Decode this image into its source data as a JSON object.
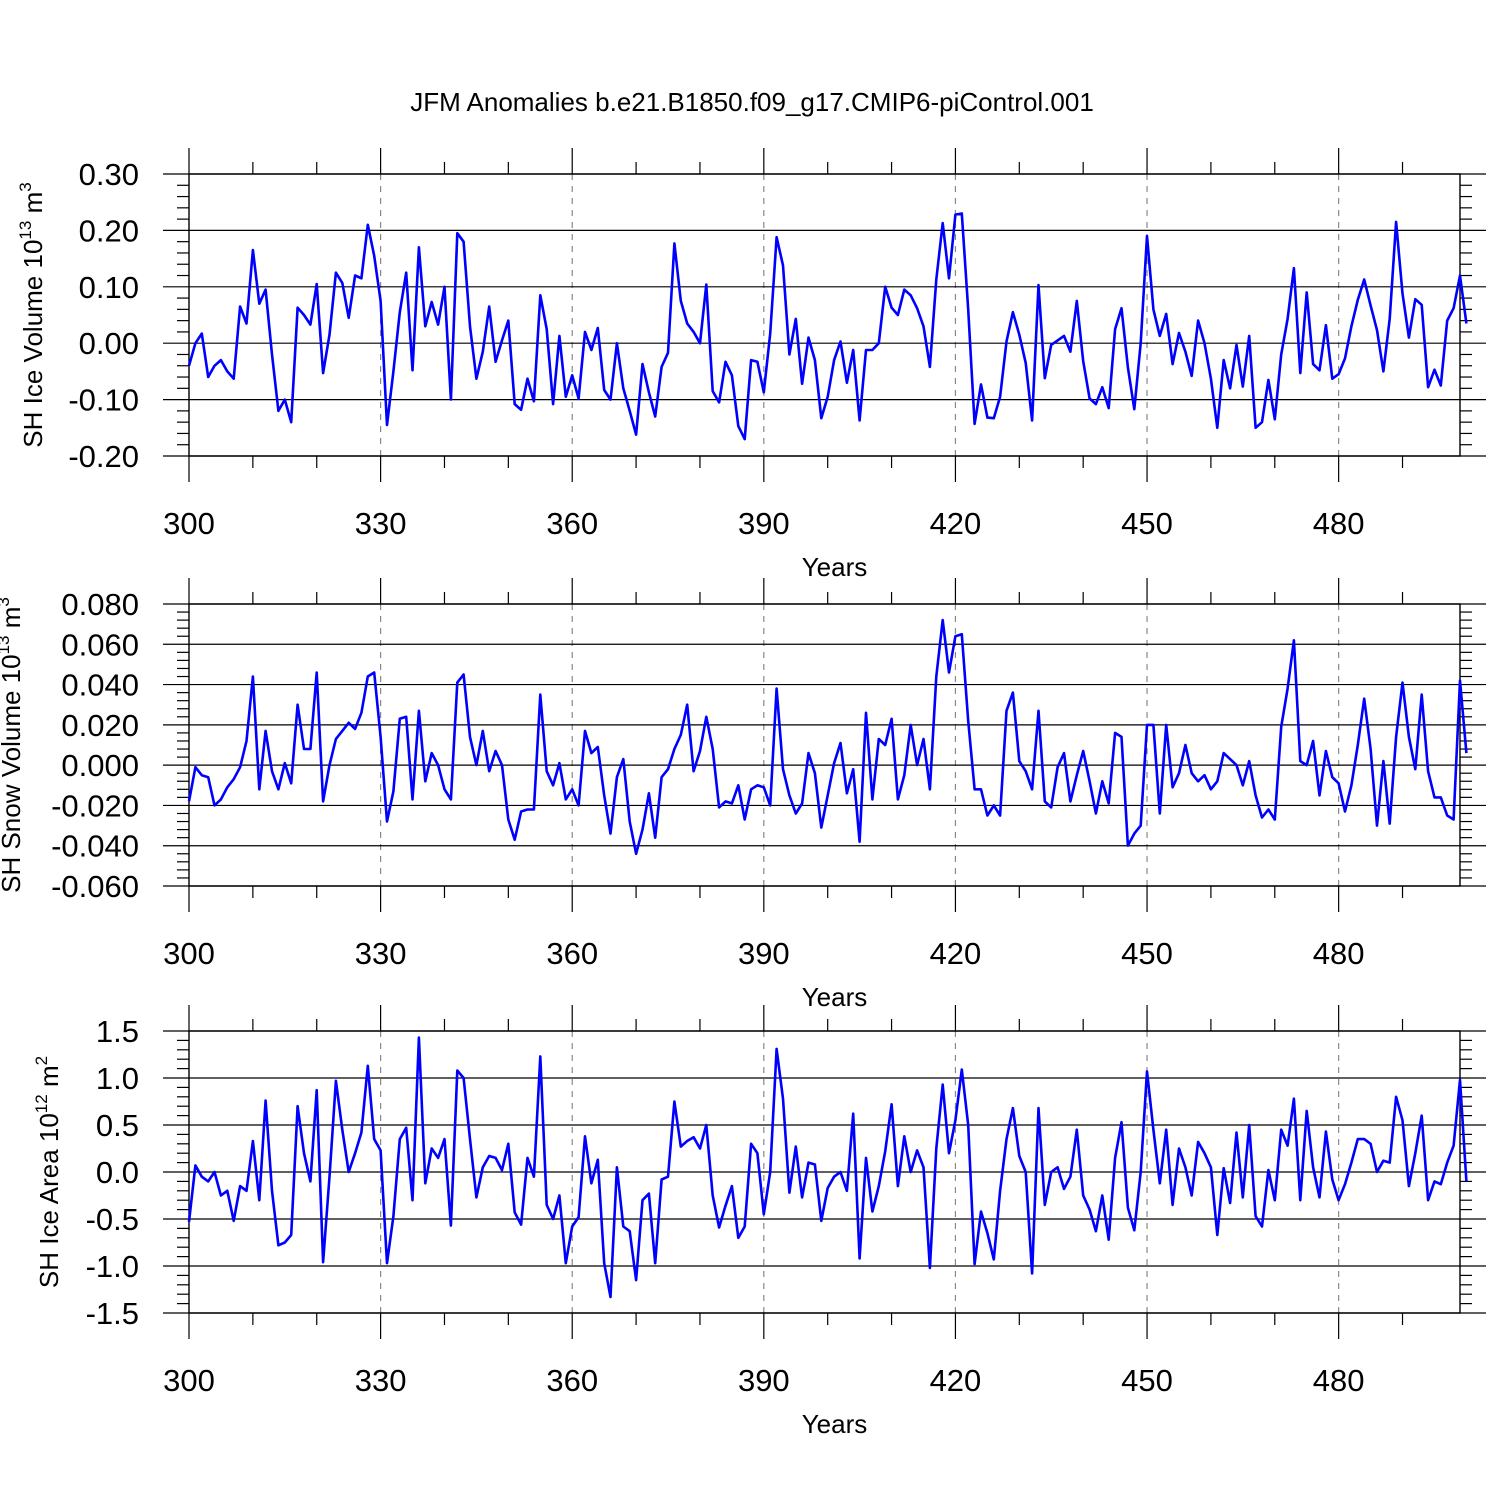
{
  "title": "JFM Anomalies b.e21.B1850.f09_g17.CMIP6-piControl.001",
  "colors": {
    "line": "#0000ff",
    "grid": "#888888"
  },
  "chart_data": [
    {
      "type": "line",
      "xlabel": "Years",
      "ylabel": "SH Ice Volume 10¹³ m³",
      "xlim": [
        300,
        499
      ],
      "ylim": [
        -0.2,
        0.3
      ],
      "xticks": [
        300,
        330,
        360,
        390,
        420,
        450,
        480
      ],
      "xtick_labels": [
        "300",
        "330",
        "360",
        "390",
        "420",
        "450",
        "480"
      ],
      "yticks": [
        -0.2,
        -0.1,
        0.0,
        0.1,
        0.2,
        0.3
      ],
      "ytick_labels": [
        "-0.20",
        "-0.10",
        "0.00",
        "0.10",
        "0.20",
        "0.30"
      ],
      "grid": "vertical dashed at major x ticks",
      "series": [
        {
          "x_start": 300,
          "values": [
            -0.04,
            0.0,
            0.017,
            -0.06,
            -0.04,
            -0.03,
            -0.05,
            -0.063,
            0.065,
            0.035,
            0.165,
            0.07,
            0.095,
            -0.02,
            -0.12,
            -0.1,
            -0.14,
            0.063,
            0.05,
            0.033,
            0.105,
            -0.053,
            0.015,
            0.125,
            0.107,
            0.045,
            0.12,
            0.115,
            0.21,
            0.155,
            0.075,
            -0.145,
            -0.05,
            0.055,
            0.125,
            -0.048,
            0.17,
            0.03,
            0.073,
            0.033,
            0.1,
            -0.1,
            0.195,
            0.18,
            0.03,
            -0.063,
            -0.015,
            0.065,
            -0.033,
            0.005,
            0.04,
            -0.108,
            -0.118,
            -0.063,
            -0.103,
            0.085,
            0.025,
            -0.108,
            0.013,
            -0.095,
            -0.057,
            -0.098,
            0.02,
            -0.012,
            0.027,
            -0.083,
            -0.1,
            0.0,
            -0.08,
            -0.12,
            -0.162,
            -0.037,
            -0.087,
            -0.13,
            -0.042,
            -0.017,
            0.177,
            0.075,
            0.035,
            0.02,
            0.0,
            0.104,
            -0.085,
            -0.105,
            -0.033,
            -0.057,
            -0.147,
            -0.17,
            -0.03,
            -0.033,
            -0.087,
            0.017,
            0.188,
            0.138,
            -0.02,
            0.043,
            -0.072,
            0.01,
            -0.03,
            -0.133,
            -0.095,
            -0.03,
            0.003,
            -0.07,
            -0.012,
            -0.137,
            -0.012,
            -0.012,
            0.0,
            0.1,
            0.063,
            0.05,
            0.095,
            0.085,
            0.062,
            0.03,
            -0.042,
            0.113,
            0.213,
            0.115,
            0.228,
            0.23,
            0.06,
            -0.143,
            -0.073,
            -0.132,
            -0.133,
            -0.095,
            0.003,
            0.055,
            0.015,
            -0.035,
            -0.137,
            0.103,
            -0.062,
            -0.003,
            0.005,
            0.013,
            -0.015,
            0.075,
            -0.032,
            -0.098,
            -0.108,
            -0.078,
            -0.115,
            0.025,
            0.062,
            -0.043,
            -0.117,
            0.0,
            0.19,
            0.06,
            0.013,
            0.052,
            -0.037,
            0.018,
            -0.015,
            -0.058,
            0.04,
            0.0,
            -0.063,
            -0.15,
            -0.03,
            -0.08,
            -0.003,
            -0.077,
            0.013,
            -0.15,
            -0.14,
            -0.065,
            -0.135,
            -0.02,
            0.043,
            0.133,
            -0.053,
            0.09,
            -0.037,
            -0.048,
            0.032,
            -0.063,
            -0.055,
            -0.027,
            0.03,
            0.077,
            0.113,
            0.067,
            0.023,
            -0.05,
            0.043,
            0.215,
            0.088,
            0.01,
            0.078,
            0.068,
            -0.078,
            -0.047,
            -0.075,
            0.04,
            0.062,
            0.12,
            0.035
          ]
        }
      ]
    },
    {
      "type": "line",
      "xlabel": "Years",
      "ylabel": "SH Snow Volume 10¹³ m³",
      "xlim": [
        300,
        499
      ],
      "ylim": [
        -0.06,
        0.08
      ],
      "xticks": [
        300,
        330,
        360,
        390,
        420,
        450,
        480
      ],
      "xtick_labels": [
        "300",
        "330",
        "360",
        "390",
        "420",
        "450",
        "480"
      ],
      "yticks": [
        -0.06,
        -0.04,
        -0.02,
        0.0,
        0.02,
        0.04,
        0.06,
        0.08
      ],
      "ytick_labels": [
        "-0.060",
        "-0.040",
        "-0.020",
        "0.000",
        "0.020",
        "0.040",
        "0.060",
        "0.080"
      ],
      "grid": "vertical dashed at major x ticks",
      "series": [
        {
          "x_start": 300,
          "values": [
            -0.018,
            -0.001,
            -0.005,
            -0.006,
            -0.02,
            -0.017,
            -0.011,
            -0.007,
            -0.001,
            0.012,
            0.044,
            -0.012,
            0.017,
            -0.003,
            -0.012,
            0.001,
            -0.009,
            0.03,
            0.008,
            0.008,
            0.046,
            -0.018,
            0.0,
            0.013,
            0.017,
            0.021,
            0.018,
            0.026,
            0.044,
            0.046,
            0.014,
            -0.028,
            -0.013,
            0.023,
            0.024,
            -0.017,
            0.027,
            -0.008,
            0.006,
            0.0,
            -0.012,
            -0.017,
            0.041,
            0.045,
            0.014,
            0.0,
            0.017,
            -0.003,
            0.007,
            0.0,
            -0.027,
            -0.037,
            -0.023,
            -0.022,
            -0.022,
            0.035,
            -0.003,
            -0.01,
            0.001,
            -0.017,
            -0.012,
            -0.02,
            0.017,
            0.006,
            0.009,
            -0.015,
            -0.034,
            -0.006,
            0.003,
            -0.028,
            -0.044,
            -0.032,
            -0.014,
            -0.036,
            -0.006,
            -0.002,
            0.008,
            0.015,
            0.03,
            -0.003,
            0.007,
            0.024,
            0.008,
            -0.021,
            -0.018,
            -0.019,
            -0.01,
            -0.027,
            -0.012,
            -0.01,
            -0.011,
            -0.02,
            0.038,
            -0.002,
            -0.015,
            -0.024,
            -0.019,
            0.006,
            -0.004,
            -0.031,
            -0.015,
            0.001,
            0.011,
            -0.014,
            -0.002,
            -0.038,
            0.026,
            -0.017,
            0.013,
            0.01,
            0.023,
            -0.017,
            -0.005,
            0.02,
            0.0,
            0.013,
            -0.012,
            0.044,
            0.072,
            0.046,
            0.064,
            0.065,
            0.022,
            -0.012,
            -0.012,
            -0.025,
            -0.02,
            -0.025,
            0.027,
            0.036,
            0.002,
            -0.003,
            -0.012,
            0.027,
            -0.018,
            -0.021,
            -0.001,
            0.006,
            -0.018,
            -0.005,
            0.007,
            -0.008,
            -0.024,
            -0.008,
            -0.019,
            0.016,
            0.014,
            -0.04,
            -0.034,
            -0.03,
            0.02,
            0.02,
            -0.024,
            0.02,
            -0.011,
            -0.004,
            0.01,
            -0.004,
            -0.008,
            -0.005,
            -0.012,
            -0.008,
            0.006,
            0.003,
            0.0,
            -0.01,
            0.002,
            -0.015,
            -0.026,
            -0.022,
            -0.027,
            0.019,
            0.038,
            0.062,
            0.002,
            0.0,
            0.012,
            -0.015,
            0.007,
            -0.006,
            -0.009,
            -0.023,
            -0.01,
            0.01,
            0.033,
            0.008,
            -0.03,
            0.002,
            -0.029,
            0.014,
            0.041,
            0.014,
            -0.002,
            0.035,
            -0.003,
            -0.016,
            -0.016,
            -0.025,
            -0.027,
            0.042,
            0.006
          ]
        }
      ]
    },
    {
      "type": "line",
      "xlabel": "Years",
      "ylabel": "SH Ice Area 10¹² m²",
      "xlim": [
        300,
        499
      ],
      "ylim": [
        -1.5,
        1.5
      ],
      "xticks": [
        300,
        330,
        360,
        390,
        420,
        450,
        480
      ],
      "xtick_labels": [
        "300",
        "330",
        "360",
        "390",
        "420",
        "450",
        "480"
      ],
      "yticks": [
        -1.5,
        -1.0,
        -0.5,
        0.0,
        0.5,
        1.0,
        1.5
      ],
      "ytick_labels": [
        "-1.5",
        "-1.0",
        "-0.5",
        "0.0",
        "0.5",
        "1.0",
        "1.5"
      ],
      "grid": "vertical dashed at major x ticks",
      "series": [
        {
          "x_start": 300,
          "values": [
            -0.53,
            0.07,
            -0.05,
            -0.1,
            0.0,
            -0.25,
            -0.2,
            -0.52,
            -0.15,
            -0.2,
            0.33,
            -0.3,
            0.76,
            -0.2,
            -0.78,
            -0.75,
            -0.67,
            0.7,
            0.2,
            -0.1,
            0.87,
            -0.96,
            -0.05,
            0.97,
            0.45,
            0.0,
            0.2,
            0.42,
            1.13,
            0.35,
            0.23,
            -0.97,
            -0.47,
            0.35,
            0.47,
            -0.3,
            1.43,
            -0.12,
            0.25,
            0.15,
            0.35,
            -0.57,
            1.08,
            1.0,
            0.35,
            -0.27,
            0.05,
            0.17,
            0.15,
            0.02,
            0.3,
            -0.43,
            -0.56,
            0.15,
            -0.05,
            1.23,
            -0.35,
            -0.5,
            -0.25,
            -0.97,
            -0.58,
            -0.48,
            0.38,
            -0.12,
            0.13,
            -0.97,
            -1.33,
            0.05,
            -0.58,
            -0.63,
            -1.15,
            -0.3,
            -0.23,
            -0.97,
            -0.08,
            -0.05,
            0.75,
            0.27,
            0.33,
            0.37,
            0.25,
            0.5,
            -0.25,
            -0.59,
            -0.36,
            -0.15,
            -0.7,
            -0.58,
            0.3,
            0.2,
            -0.45,
            0.0,
            1.31,
            0.78,
            -0.22,
            0.27,
            -0.27,
            0.1,
            0.08,
            -0.52,
            -0.17,
            -0.05,
            0.0,
            -0.2,
            0.62,
            -0.92,
            0.15,
            -0.42,
            -0.15,
            0.22,
            0.72,
            -0.15,
            0.38,
            0.0,
            0.23,
            0.05,
            -1.02,
            0.25,
            0.93,
            0.2,
            0.55,
            1.09,
            0.5,
            -0.98,
            -0.42,
            -0.65,
            -0.93,
            -0.2,
            0.35,
            0.68,
            0.17,
            0.0,
            -1.08,
            0.68,
            -0.35,
            0.0,
            0.05,
            -0.18,
            -0.05,
            0.45,
            -0.25,
            -0.4,
            -0.63,
            -0.25,
            -0.72,
            0.15,
            0.53,
            -0.38,
            -0.62,
            0.0,
            1.07,
            0.45,
            -0.12,
            0.45,
            -0.35,
            0.25,
            0.05,
            -0.25,
            0.32,
            0.2,
            0.05,
            -0.67,
            0.04,
            -0.33,
            0.42,
            -0.27,
            0.5,
            -0.47,
            -0.58,
            0.02,
            -0.3,
            0.45,
            0.28,
            0.78,
            -0.3,
            0.65,
            0.05,
            -0.27,
            0.43,
            -0.08,
            -0.3,
            -0.13,
            0.1,
            0.35,
            0.35,
            0.3,
            0.0,
            0.12,
            0.1,
            0.8,
            0.55,
            -0.15,
            0.2,
            0.6,
            -0.3,
            -0.1,
            -0.13,
            0.1,
            0.28,
            0.98,
            -0.1
          ]
        }
      ]
    }
  ]
}
